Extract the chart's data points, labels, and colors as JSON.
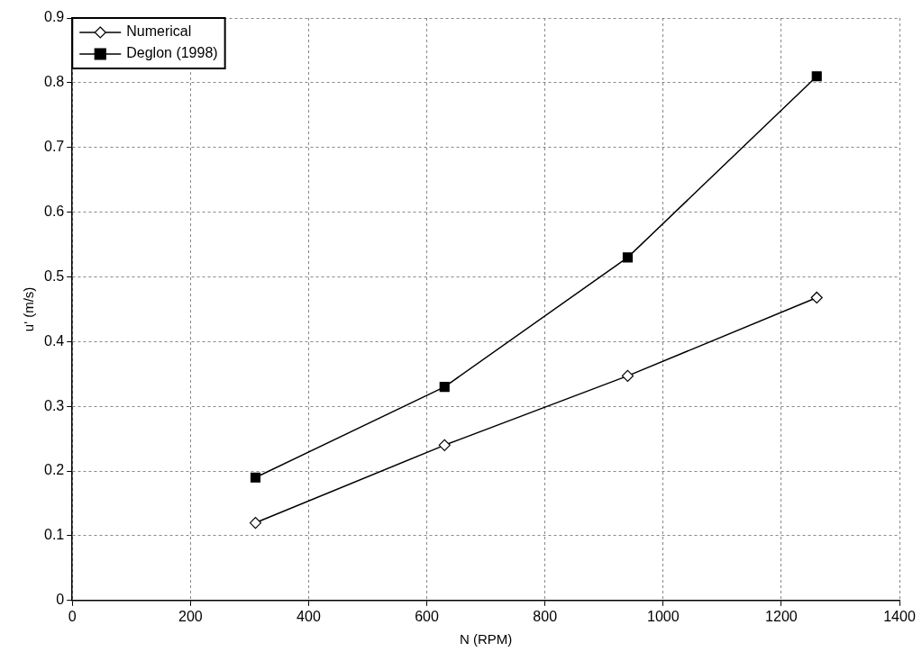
{
  "chart_data": {
    "type": "line",
    "xlabel": "N (RPM)",
    "ylabel": "u' (m/s)",
    "xlim": [
      0,
      1400
    ],
    "xticks": [
      0,
      200,
      400,
      600,
      800,
      1000,
      1200,
      1400
    ],
    "ylim": [
      0,
      0.9
    ],
    "yticks": [
      0,
      0.1,
      0.2,
      0.3,
      0.4,
      0.5,
      0.6,
      0.7,
      0.8,
      0.9
    ],
    "grid": true,
    "legend": "top left",
    "line_style": "solid",
    "series": [
      {
        "name": "Numerical",
        "color": "#000000",
        "marker": "diamond",
        "x": [
          310,
          630,
          940,
          1260
        ],
        "values": [
          0.12,
          0.24,
          0.347,
          0.468
        ]
      },
      {
        "name": "Deglon (1998)",
        "color": "#000000",
        "marker": "square",
        "x": [
          310,
          630,
          940,
          1260
        ],
        "values": [
          0.19,
          0.33,
          0.53,
          0.81
        ]
      }
    ]
  }
}
